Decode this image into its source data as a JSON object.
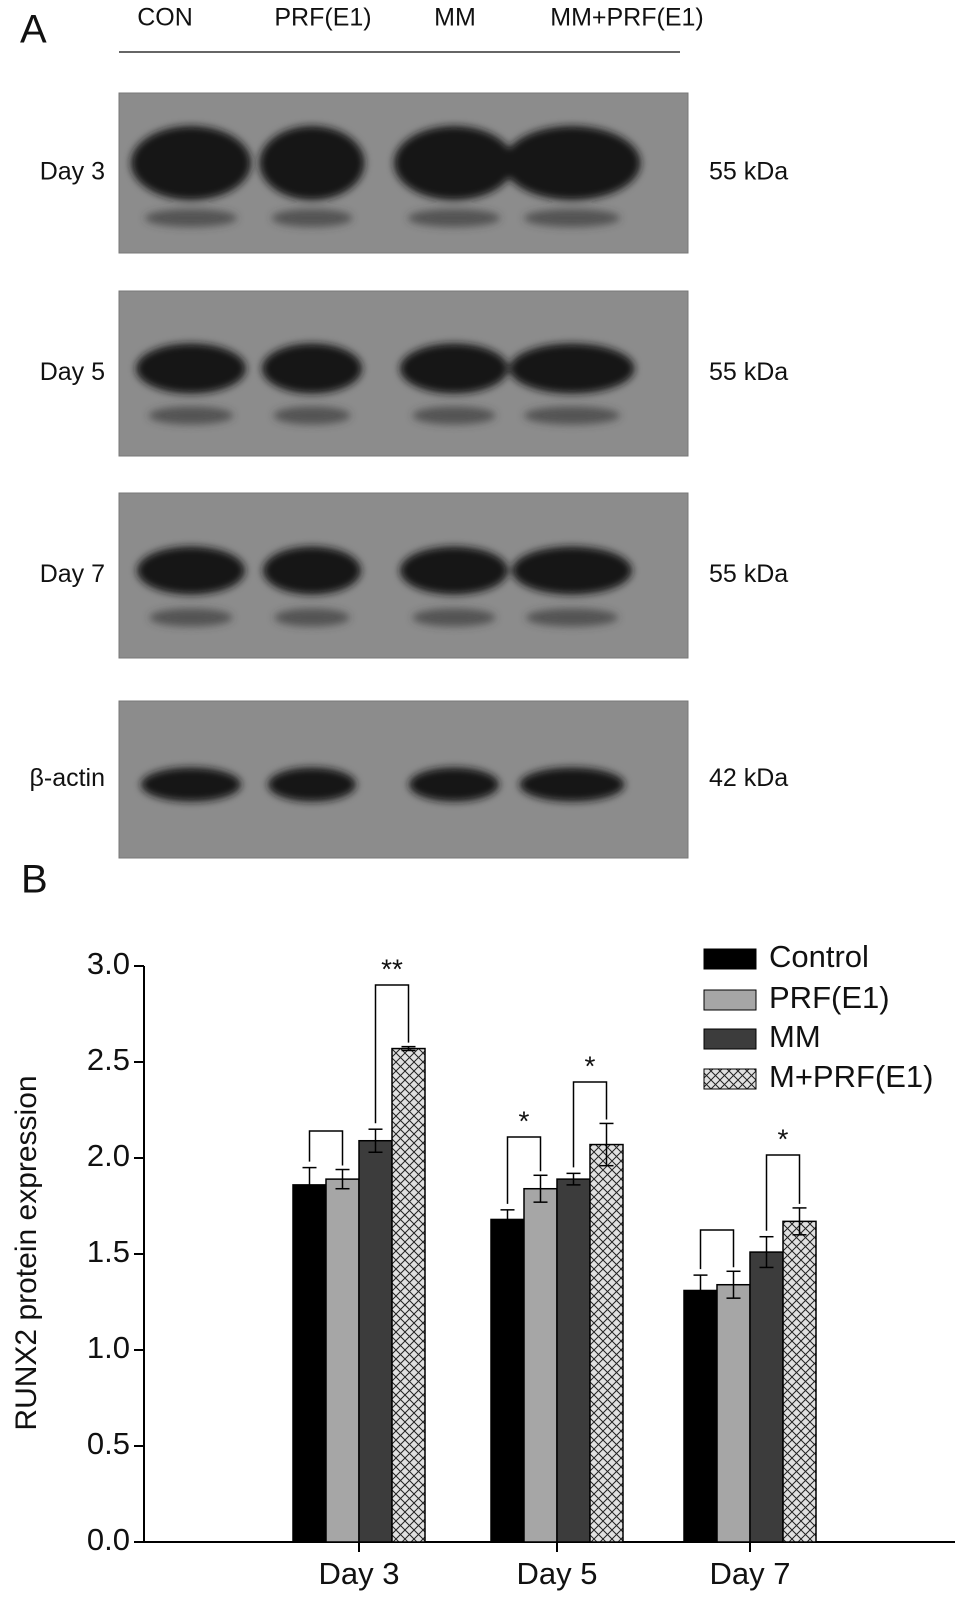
{
  "panel_a": {
    "label": "A",
    "lanes": [
      "CON",
      "PRF(E1)",
      "MM",
      "MM+PRF(E1)"
    ],
    "rows": [
      {
        "label": "Day 3",
        "kda": "55 kDa"
      },
      {
        "label": "Day 5",
        "kda": "55 kDa"
      },
      {
        "label": "Day 7",
        "kda": "55 kDa"
      },
      {
        "label": "β-actin",
        "kda": "42 kDa"
      }
    ]
  },
  "panel_b": {
    "label": "B"
  },
  "chart_data": {
    "type": "bar",
    "y_label": "RUNX2 protein expression",
    "categories": [
      "Day 3",
      "Day 5",
      "Day 7"
    ],
    "series": [
      {
        "name": "Control",
        "color": "#000000",
        "values": [
          1.86,
          1.68,
          1.31
        ],
        "errors": [
          0.09,
          0.05,
          0.08
        ]
      },
      {
        "name": "PRF(E1)",
        "color": "#a6a6a6",
        "values": [
          1.89,
          1.84,
          1.34
        ],
        "errors": [
          0.05,
          0.07,
          0.07
        ]
      },
      {
        "name": "MM",
        "color": "#3c3c3c",
        "values": [
          2.09,
          1.89,
          1.51
        ],
        "errors": [
          0.06,
          0.03,
          0.08
        ]
      },
      {
        "name": "M+PRF(E1)",
        "color": "#e0e0e0",
        "pattern": "crosshatch",
        "values": [
          2.57,
          2.07,
          1.67
        ],
        "errors": [
          0.01,
          0.11,
          0.07
        ]
      }
    ],
    "ylim": [
      0,
      3
    ],
    "yticks": [
      {
        "value": 0,
        "label": "0.0"
      },
      0.5,
      {
        "value": 1,
        "label": "1.0"
      },
      1.5,
      {
        "value": 2,
        "label": "2.0"
      },
      2.5,
      {
        "value": 3,
        "label": "3.0"
      }
    ],
    "annotations": [
      "**",
      "*",
      "*",
      "*"
    ]
  }
}
